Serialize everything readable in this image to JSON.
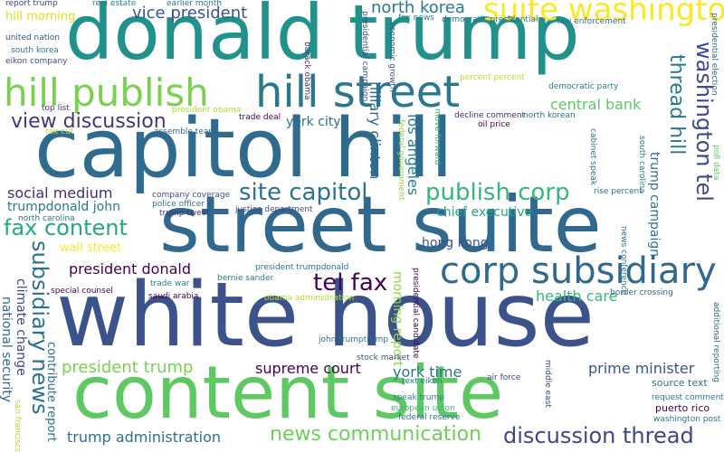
{
  "words": [
    {
      "text": "donald trump",
      "color": "#21918c"
    },
    {
      "text": "capitol hill",
      "color": "#2f6b8e"
    },
    {
      "text": "street suite",
      "color": "#31688e"
    },
    {
      "text": "white house",
      "color": "#3b528b"
    },
    {
      "text": "content site",
      "color": "#5ec962"
    },
    {
      "text": "hill street",
      "color": "#2a788e"
    },
    {
      "text": "hill publish",
      "color": "#7ad151"
    },
    {
      "text": "suite washington",
      "color": "#fde725"
    },
    {
      "text": "corp subsidiary",
      "color": "#31688e"
    },
    {
      "text": "washington tel",
      "color": "#3e4a89"
    },
    {
      "text": "thread hill",
      "color": "#2a788e"
    },
    {
      "text": "site capitol",
      "color": "#2c728e"
    },
    {
      "text": "publish corp",
      "color": "#35b779"
    },
    {
      "text": "fax content",
      "color": "#22a884"
    },
    {
      "text": "subsidiary news",
      "color": "#2c728e"
    },
    {
      "text": "tel fax",
      "color": "#440154"
    },
    {
      "text": "discussion thread",
      "color": "#414487"
    },
    {
      "text": "news communication",
      "color": "#6ece58"
    },
    {
      "text": "view discussion",
      "color": "#46337e"
    },
    {
      "text": "president trump",
      "color": "#7ad151"
    },
    {
      "text": "vice president",
      "color": "#3b528b"
    },
    {
      "text": "north korea",
      "color": "#2a788e"
    },
    {
      "text": "central bank",
      "color": "#5ec962"
    },
    {
      "text": "supreme court",
      "color": "#440154"
    },
    {
      "text": "york time",
      "color": "#2c728e"
    },
    {
      "text": "trump administration",
      "color": "#2c728e"
    },
    {
      "text": "prime minister",
      "color": "#3b528b"
    },
    {
      "text": "health care",
      "color": "#35b779"
    },
    {
      "text": "hillary clinton",
      "color": "#31688e"
    },
    {
      "text": "los angeles",
      "color": "#26828e"
    },
    {
      "text": "social medium",
      "color": "#472c7a"
    },
    {
      "text": "president donald",
      "color": "#440154"
    },
    {
      "text": "chief executive",
      "color": "#22a884"
    },
    {
      "text": "trumpdonald john",
      "color": "#2a788e"
    },
    {
      "text": "hong kong",
      "color": "#3b528b"
    },
    {
      "text": "york city",
      "color": "#2c728e"
    },
    {
      "text": "climate change",
      "color": "#3e4a89"
    },
    {
      "text": "national security",
      "color": "#31688e"
    },
    {
      "text": "morning report",
      "color": "#8fd744"
    },
    {
      "text": "trump campaign",
      "color": "#2c728e"
    },
    {
      "text": "wall street",
      "color": "#fde725"
    },
    {
      "text": "hill morning",
      "color": "#d8e219"
    },
    {
      "text": "contribute report",
      "color": "#2c728e"
    },
    {
      "text": "real estate",
      "color": "#26828e"
    },
    {
      "text": "earlier month",
      "color": "#2c728e"
    },
    {
      "text": "report trump",
      "color": "#414487"
    },
    {
      "text": "united nation",
      "color": "#3b528b"
    },
    {
      "text": "south korea",
      "color": "#2a788e"
    },
    {
      "text": "eikon company",
      "color": "#3e4a89"
    },
    {
      "text": "top list",
      "color": "#46337e"
    },
    {
      "text": "tax cut",
      "color": "#addc30"
    },
    {
      "text": "president obama",
      "color": "#addc30"
    },
    {
      "text": "trade deal",
      "color": "#440154"
    },
    {
      "text": "assemble team",
      "color": "#31688e"
    },
    {
      "text": "barack obama",
      "color": "#46337e"
    },
    {
      "text": "presidential campaign",
      "color": "#3e4a89"
    },
    {
      "text": "economic growth",
      "color": "#3b528b"
    },
    {
      "text": "fox news",
      "color": "#26828e"
    },
    {
      "text": "democratic presidential",
      "color": "#2c728e"
    },
    {
      "text": "law enforcement",
      "color": "#2c728e"
    },
    {
      "text": "presidential election",
      "color": "#31688e"
    },
    {
      "text": "percent percent",
      "color": "#b5de2b"
    },
    {
      "text": "democratic party",
      "color": "#2a788e"
    },
    {
      "text": "decline comment",
      "color": "#482475"
    },
    {
      "text": "north korean",
      "color": "#2c728e"
    },
    {
      "text": "oil price",
      "color": "#440154"
    },
    {
      "text": "federal government",
      "color": "#8fd744"
    },
    {
      "text": "move forward",
      "color": "#35b779"
    },
    {
      "text": "cabinet speak",
      "color": "#2c728e"
    },
    {
      "text": "south carolina",
      "color": "#2a788e"
    },
    {
      "text": "poll data",
      "color": "#5ec962"
    },
    {
      "text": "rise percent",
      "color": "#2c728e"
    },
    {
      "text": "additional reporting",
      "color": "#31688e"
    },
    {
      "text": "company coverage",
      "color": "#3e4a89"
    },
    {
      "text": "police officer",
      "color": "#2c728e"
    },
    {
      "text": "trump tweet",
      "color": "#46337e"
    },
    {
      "text": "justice department",
      "color": "#414487"
    },
    {
      "text": "north carolina",
      "color": "#2c728e"
    },
    {
      "text": "news conference",
      "color": "#2c728e"
    },
    {
      "text": "bernie sander",
      "color": "#2a788e"
    },
    {
      "text": "president trumpdonald",
      "color": "#2c728e"
    },
    {
      "text": "trade war",
      "color": "#26828e"
    },
    {
      "text": "saudi arabia",
      "color": "#440154"
    },
    {
      "text": "obama administration",
      "color": "#b5de2b"
    },
    {
      "text": "special counsel",
      "color": "#440154"
    },
    {
      "text": "border crossing",
      "color": "#31688e"
    },
    {
      "text": "presidential candidate",
      "color": "#440154"
    },
    {
      "text": "john trumptrump",
      "color": "#2c728e"
    },
    {
      "text": "stock market",
      "color": "#3b528b"
    },
    {
      "text": "air force",
      "color": "#414487"
    },
    {
      "text": "middle east",
      "color": "#3e4a89"
    },
    {
      "text": "text eikon",
      "color": "#2a788e"
    },
    {
      "text": "speak trump",
      "color": "#26828e"
    },
    {
      "text": "european union",
      "color": "#35b779"
    },
    {
      "text": "federal reserve",
      "color": "#2c728e"
    },
    {
      "text": "puerto rico",
      "color": "#440154"
    },
    {
      "text": "source text",
      "color": "#2c728e"
    },
    {
      "text": "request comment",
      "color": "#2a788e"
    },
    {
      "text": "washington post",
      "color": "#2c728e"
    },
    {
      "text": "san francisco",
      "color": "#addc30"
    }
  ]
}
